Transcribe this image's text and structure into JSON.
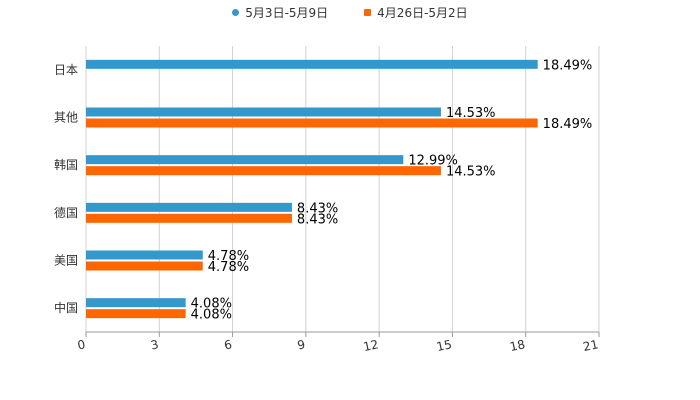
{
  "chart_data": {
    "type": "bar",
    "orientation": "horizontal",
    "categories": [
      "日本",
      "其他",
      "韩国",
      "德国",
      "美国",
      "中国"
    ],
    "series": [
      {
        "name": "5月3日-5月9日",
        "color": "#3399cc",
        "marker": "circle",
        "values": [
          18.49,
          14.53,
          12.99,
          8.43,
          4.78,
          4.08
        ],
        "labels": [
          "18.49%",
          "14.53%",
          "12.99%",
          "8.43%",
          "4.78%",
          "4.08%"
        ]
      },
      {
        "name": "4月26日-5月2日",
        "color": "#ff6600",
        "marker": "square",
        "values": [
          null,
          18.49,
          14.53,
          8.43,
          4.78,
          4.08
        ],
        "labels": [
          null,
          "18.49%",
          "14.53%",
          "8.43%",
          "4.78%",
          "4.08%"
        ]
      }
    ],
    "xlim": [
      0,
      21
    ],
    "xticks": [
      "0",
      "3",
      "6",
      "9",
      "12",
      "15",
      "18",
      "21"
    ],
    "xtick_values": [
      0,
      3,
      6,
      9,
      12,
      15,
      18,
      21
    ],
    "grid": "vertical",
    "legend_position": "top-center"
  }
}
